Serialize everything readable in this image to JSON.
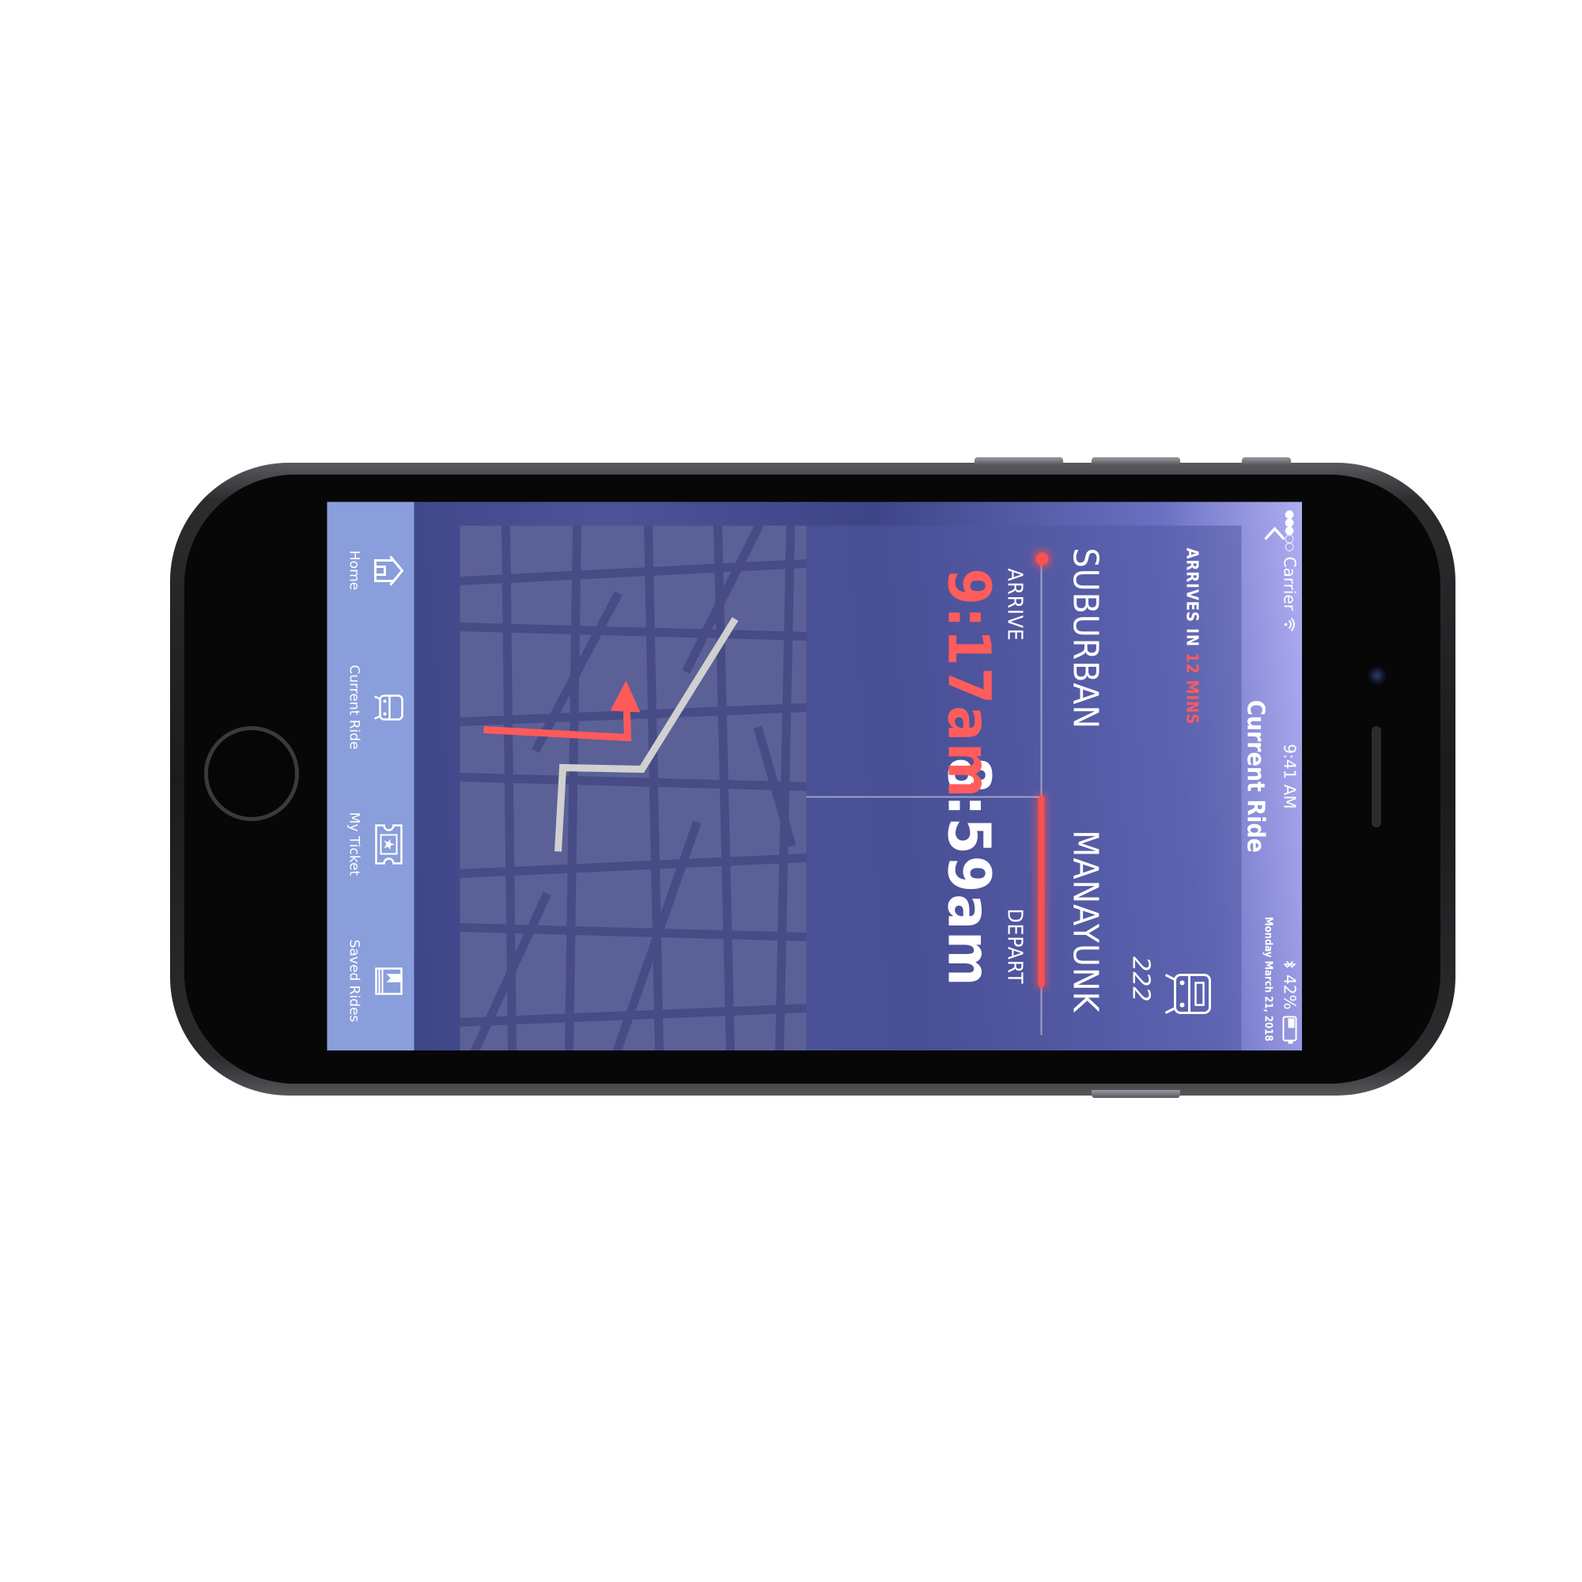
{
  "status": {
    "carrier": "Carrier",
    "time": "9:41 AM",
    "battery": "42%",
    "signal_dots": "●●●○○",
    "wifi_icon": "wifi-icon",
    "bluetooth_icon": "bluetooth-icon"
  },
  "header": {
    "date": "Monday March 21, 2018",
    "title": "Current Ride"
  },
  "ride": {
    "route_number": "222",
    "arrives_prefix": "ARRIVES IN",
    "arrives_value": "12 MINS",
    "origin": "MANAYUNK",
    "destination": "SUBURBAN",
    "depart_label": "DEPART",
    "arrive_label": "ARRIVE",
    "depart_time": "8:59am",
    "arrive_time": "9:17am"
  },
  "tabs": [
    {
      "label": "Home",
      "icon": "home-icon"
    },
    {
      "label": "Current Ride",
      "icon": "bus-icon"
    },
    {
      "label": "My Ticket",
      "icon": "ticket-icon"
    },
    {
      "label": "Saved Rides",
      "icon": "bookmark-icon"
    }
  ],
  "colors": {
    "accent": "#ff5b5b",
    "tab_bar": "#8a9edb",
    "map": "#5b6096"
  }
}
